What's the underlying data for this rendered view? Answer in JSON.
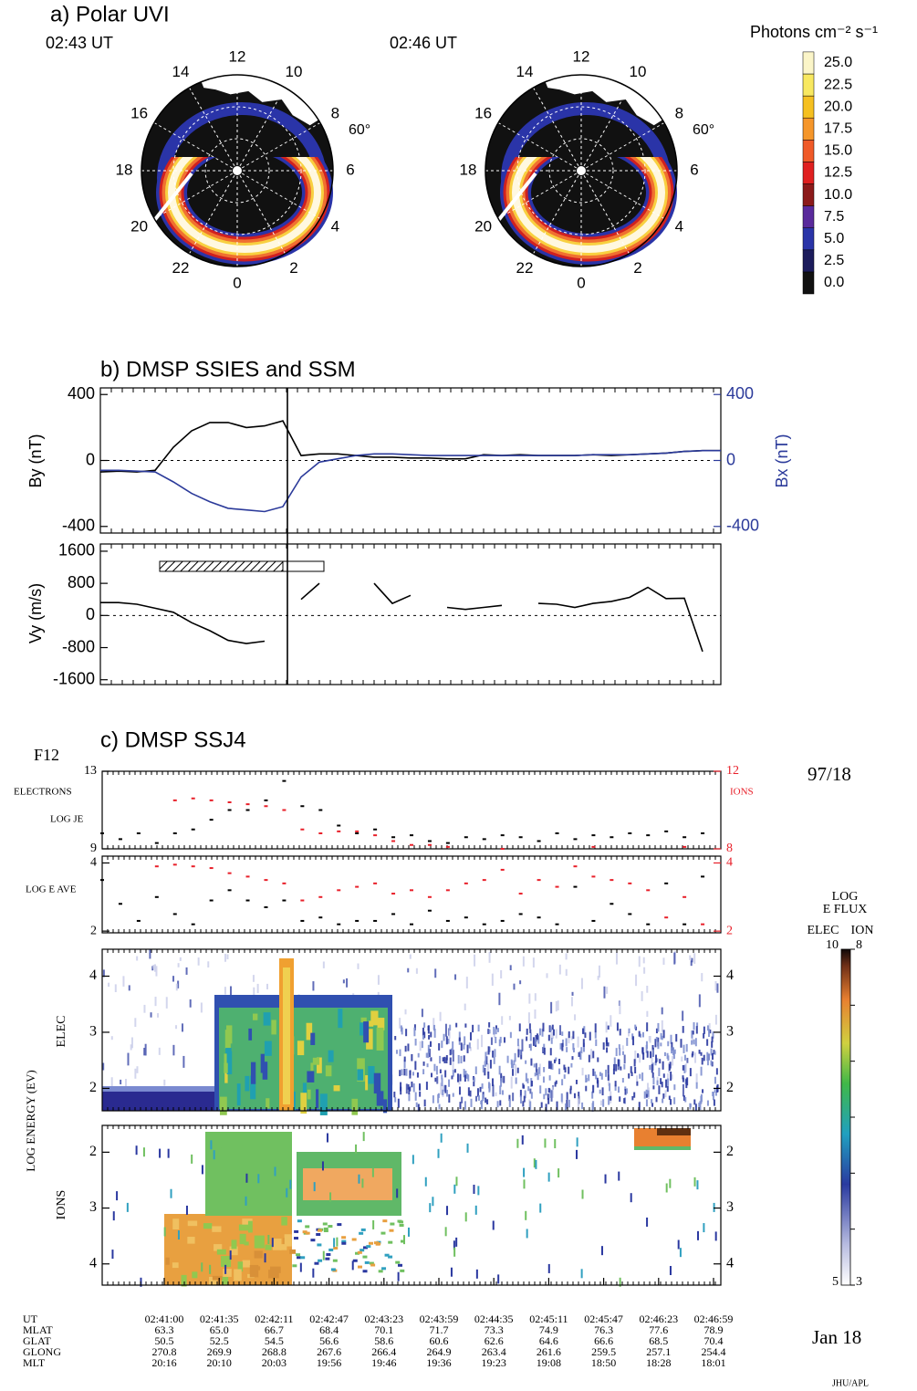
{
  "chart_data": [
    {
      "type": "polar-image",
      "title": "a) Polar UVI",
      "panels": [
        {
          "time": "02:43 UT"
        },
        {
          "time": "02:46 UT"
        }
      ],
      "mlt_labels": [
        12,
        10,
        8,
        6,
        4,
        2,
        0,
        22,
        20,
        18,
        16,
        14
      ],
      "latitude_label": "60°",
      "colorbar": {
        "title": "Photons cm⁻² s⁻¹",
        "ticks": [
          {
            "value": 0,
            "label": "0.0"
          },
          {
            "value": 2.5,
            "label": "2.5"
          },
          {
            "value": 5,
            "label": "5.0"
          },
          {
            "value": 7.5,
            "label": "7.5"
          },
          {
            "value": 10,
            "label": "10.0"
          },
          {
            "value": 12.5,
            "label": "12.5"
          },
          {
            "value": 15,
            "label": "15.0"
          },
          {
            "value": 17.5,
            "label": "17.5"
          },
          {
            "value": 20,
            "label": "20.0"
          },
          {
            "value": 22.5,
            "label": "22.5"
          },
          {
            "value": 25,
            "label": "25.0"
          }
        ],
        "colors": [
          "#111111",
          "#1c1c5c",
          "#2a34a8",
          "#5a2a9c",
          "#8c1a1a",
          "#e02020",
          "#f05a28",
          "#f5962a",
          "#f5c020",
          "#f8e860",
          "#fbf5c8"
        ]
      }
    },
    {
      "type": "line",
      "title": "b) DMSP SSIES and SSM",
      "ylabel": "By (nT)",
      "y2label": "Bx (nT)",
      "ylim": [
        -440,
        440
      ],
      "yticks": [
        -400,
        0,
        400
      ],
      "y2lim": [
        -440,
        440
      ],
      "y2ticks": [
        -400,
        0,
        400
      ],
      "series": [
        {
          "color": "#000000",
          "values": [
            -70,
            -65,
            -70,
            -60,
            80,
            180,
            230,
            230,
            200,
            210,
            240,
            30,
            40,
            40,
            30,
            20,
            20,
            15,
            15,
            10,
            10,
            35,
            30,
            35,
            30,
            30,
            30,
            35,
            30,
            35,
            40,
            45,
            55,
            60,
            60
          ]
        },
        {
          "color": "#2b3a9a",
          "axis": "y2",
          "values": [
            -60,
            -60,
            -65,
            -70,
            -130,
            -200,
            -250,
            -290,
            -300,
            -310,
            -280,
            -100,
            -10,
            10,
            30,
            40,
            40,
            35,
            30,
            30,
            30,
            30,
            30,
            30,
            30,
            30,
            30,
            35,
            35,
            35,
            40,
            45,
            55,
            60,
            60
          ]
        }
      ]
    },
    {
      "type": "line",
      "ylabel": "Vy (m/s)",
      "ylim": [
        -1720,
        1780
      ],
      "yticks": [
        -1600,
        -800,
        0,
        800,
        1600
      ],
      "series": [
        {
          "color": "#000000",
          "values": [
            320,
            320,
            280,
            180,
            80,
            -180,
            -380,
            -620,
            -700,
            -640,
            null,
            400,
            800,
            null,
            null,
            800,
            300,
            500,
            null,
            200,
            150,
            200,
            250,
            null,
            300,
            280,
            200,
            300,
            350,
            450,
            700,
            420,
            430,
            -900,
            null
          ]
        }
      ]
    },
    {
      "type": "scatter",
      "title": "c) DMSP SSJ4",
      "satellite": "F12",
      "date_code": "97/18",
      "date": "Jan 18",
      "credit": "JHU/APL",
      "panels": [
        {
          "labels": [
            "ELECTRONS",
            "LOG JE"
          ],
          "y2label": "IONS",
          "ylim": [
            9,
            13
          ],
          "yticks": [
            9,
            13
          ],
          "y2lim": [
            8,
            12
          ],
          "y2ticks": [
            8,
            12
          ],
          "series": [
            {
              "color": "#000000",
              "values": [
                9.8,
                9.5,
                9.8,
                9.3,
                9.8,
                10,
                10.5,
                11,
                11,
                11.5,
                12.5,
                11.2,
                11,
                10.2,
                9.8,
                10,
                9.6,
                9.7,
                9.4,
                9.3,
                9.6,
                9.5,
                9.7,
                9.6,
                9.4,
                9.8,
                9.5,
                9.7,
                9.6,
                9.8,
                9.7,
                9.9,
                9.6,
                9.8,
                null
              ]
            },
            {
              "color": "#e8202a",
              "axis": "y2",
              "values": [
                null,
                null,
                null,
                null,
                10.5,
                10.6,
                10.5,
                10.4,
                10.3,
                10.2,
                10,
                9,
                8.8,
                8.9,
                8.9,
                8.7,
                8.4,
                8.2,
                8.2,
                8.1,
                null,
                null,
                8,
                null,
                null,
                null,
                null,
                8.1,
                null,
                null,
                null,
                null,
                8.1,
                null,
                null
              ]
            }
          ]
        },
        {
          "labels": [
            "LOG E AVE"
          ],
          "ylim": [
            1.95,
            4.2
          ],
          "yticks": [
            2,
            4
          ],
          "y2lim": [
            1.95,
            4.2
          ],
          "y2ticks": [
            2,
            4
          ],
          "series": [
            {
              "color": "#000000",
              "values": [
                3.5,
                2.8,
                2.3,
                3,
                2.5,
                2.2,
                2.9,
                3.2,
                2.9,
                2.7,
                2.9,
                2.3,
                2.4,
                2.2,
                2.3,
                2.3,
                2.5,
                2.2,
                2.6,
                2.3,
                2.4,
                2.2,
                2.3,
                2.5,
                2.4,
                2.2,
                3.3,
                2.3,
                2.8,
                2.5,
                2.2,
                3.4,
                2.2,
                3.6,
                null
              ]
            },
            {
              "color": "#e8202a",
              "axis": "y2",
              "values": [
                null,
                null,
                null,
                3.9,
                3.95,
                3.9,
                3.85,
                3.7,
                3.6,
                3.5,
                3.4,
                2.9,
                3,
                3.2,
                3.3,
                3.4,
                3.1,
                3.2,
                3,
                3.2,
                3.4,
                3.5,
                3.8,
                3.1,
                3.5,
                3.3,
                3.9,
                3.6,
                3.5,
                3.4,
                3.2,
                2.4,
                3,
                2.2,
                null
              ]
            }
          ]
        }
      ],
      "spectrogram": {
        "ylabel": "LOG ENERGY (EV)",
        "panels": [
          {
            "label": "ELEC",
            "ylim": [
              1.6,
              4.48
            ],
            "yticks": [
              2,
              3,
              4
            ]
          },
          {
            "label": "IONS",
            "ylim": [
              4.38,
              1.52
            ],
            "yticks": [
              2,
              3,
              4
            ]
          }
        ]
      },
      "colorbar": {
        "title": [
          "LOG",
          "E FLUX"
        ],
        "header": [
          "ELEC",
          "ION"
        ],
        "elec_lim": [
          5,
          10
        ],
        "ion_lim": [
          3,
          8
        ]
      }
    }
  ],
  "table": {
    "rows": [
      [
        "UT",
        "02:41:00",
        "02:41:35",
        "02:42:11",
        "02:42:47",
        "02:43:23",
        "02:43:59",
        "02:44:35",
        "02:45:11",
        "02:45:47",
        "02:46:23",
        "02:46:59"
      ],
      [
        "MLAT",
        "63.3",
        "65.0",
        "66.7",
        "68.4",
        "70.1",
        "71.7",
        "73.3",
        "74.9",
        "76.3",
        "77.6",
        "78.9"
      ],
      [
        "GLAT",
        "50.5",
        "52.5",
        "54.5",
        "56.6",
        "58.6",
        "60.6",
        "62.6",
        "64.6",
        "66.6",
        "68.5",
        "70.4"
      ],
      [
        "GLONG",
        "270.8",
        "269.9",
        "268.8",
        "267.6",
        "266.4",
        "264.9",
        "263.4",
        "261.6",
        "259.5",
        "257.1",
        "254.4"
      ],
      [
        "MLT",
        "20:16",
        "20:10",
        "20:03",
        "19:56",
        "19:46",
        "19:36",
        "19:23",
        "19:08",
        "18:50",
        "18:28",
        "18:01"
      ]
    ]
  }
}
